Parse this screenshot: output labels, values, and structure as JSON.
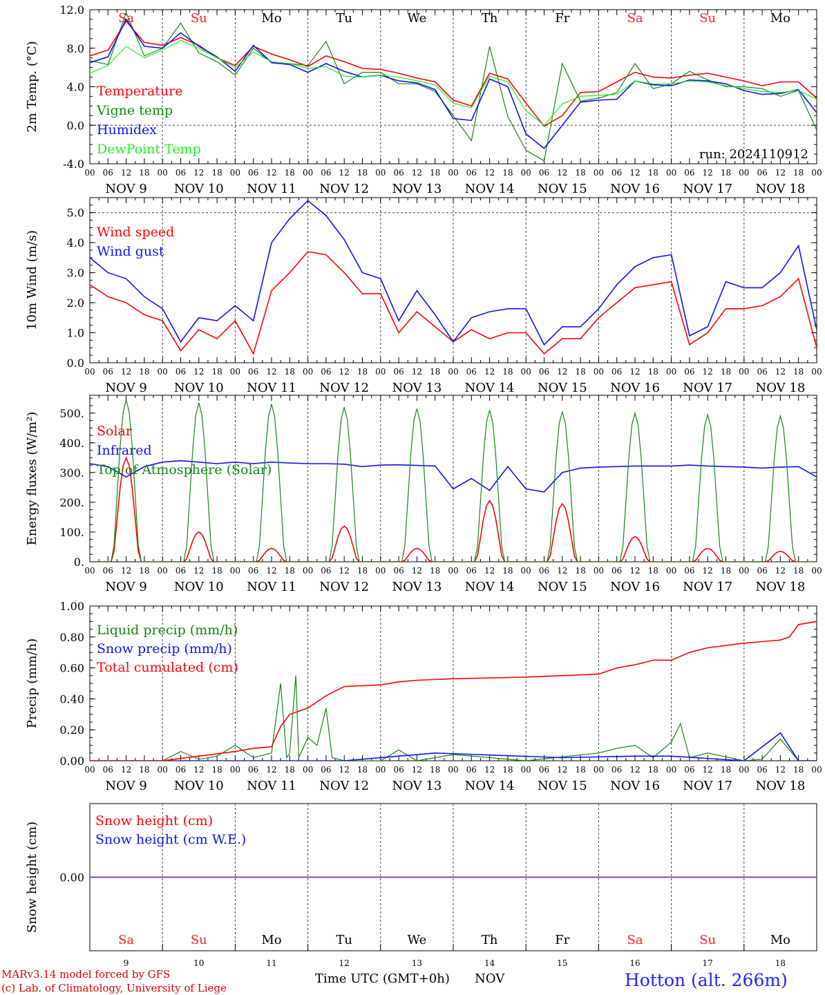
{
  "station": "Hotton (alt. 266m)",
  "credit_line1": "MARv3.14 model forced by GFS",
  "credit_line2": "(c) Lab. of Climatology, University of Liege",
  "xaxis_title": "Time UTC (GMT+0h)",
  "xaxis_month": "NOV",
  "run_label": "run: 2024110912",
  "colors": {
    "red": "#ff0000",
    "green": "#118811",
    "blue": "#1111ee",
    "lightgreen": "#22ee22",
    "purple": "#7a2a9a",
    "weekend": "#ff2020",
    "axis": "#000000"
  },
  "days": [
    {
      "num": "9",
      "name": "Sa",
      "label": "NOV  9",
      "weekend": true
    },
    {
      "num": "10",
      "name": "Su",
      "label": "NOV 10",
      "weekend": true
    },
    {
      "num": "11",
      "name": "Mo",
      "label": "NOV 11",
      "weekend": false
    },
    {
      "num": "12",
      "name": "Tu",
      "label": "NOV 12",
      "weekend": false
    },
    {
      "num": "13",
      "name": "We",
      "label": "NOV 13",
      "weekend": false
    },
    {
      "num": "14",
      "name": "Th",
      "label": "NOV 14",
      "weekend": false
    },
    {
      "num": "15",
      "name": "Fr",
      "label": "NOV 15",
      "weekend": false
    },
    {
      "num": "16",
      "name": "Sa",
      "label": "NOV 16",
      "weekend": true
    },
    {
      "num": "17",
      "name": "Su",
      "label": "NOV 17",
      "weekend": true
    },
    {
      "num": "18",
      "name": "Mo",
      "label": "NOV 18",
      "weekend": false
    }
  ],
  "hour_ticks": [
    "00",
    "06",
    "12",
    "18"
  ],
  "chart_data": [
    {
      "type": "line",
      "ylabel": "2m Temp. (°C)",
      "ylim": [
        -4,
        12
      ],
      "yticks": [
        "12.0",
        "8.0",
        "4.0",
        "0.0",
        "-4.0"
      ],
      "ytick_values": [
        12,
        8,
        4,
        0,
        -4
      ],
      "dashed": [
        0
      ],
      "x_unit": "hours from NOV 9 00 UTC",
      "series": [
        {
          "name": "Temperature",
          "color": "red",
          "x": [
            0,
            6,
            12,
            18,
            24,
            30,
            36,
            42,
            48,
            54,
            60,
            66,
            72,
            78,
            84,
            90,
            96,
            102,
            108,
            114,
            120,
            126,
            132,
            138,
            144,
            150,
            156,
            162,
            168,
            174,
            180,
            186,
            192,
            198,
            204,
            210,
            216,
            222,
            228,
            234,
            240
          ],
          "y": [
            7.2,
            7.8,
            10.8,
            8.6,
            8.3,
            9.1,
            8.3,
            7.0,
            6.2,
            8.2,
            7.4,
            6.8,
            6.1,
            7.2,
            6.6,
            5.9,
            5.8,
            5.4,
            4.9,
            4.5,
            2.6,
            2.0,
            5.4,
            4.8,
            2.3,
            -0.1,
            1.0,
            3.4,
            3.5,
            4.5,
            5.5,
            5.0,
            4.9,
            5.2,
            5.4,
            5.0,
            4.6,
            4.1,
            4.5,
            4.5,
            2.8
          ]
        },
        {
          "name": "Vigne temp",
          "color": "green",
          "x": [
            0,
            6,
            12,
            18,
            24,
            30,
            36,
            42,
            48,
            54,
            60,
            66,
            72,
            78,
            84,
            90,
            96,
            102,
            108,
            114,
            120,
            126,
            132,
            138,
            144,
            150,
            156,
            162,
            168,
            174,
            180,
            186,
            192,
            198,
            204,
            210,
            216,
            222,
            228,
            234,
            240
          ],
          "y": [
            6.7,
            6.3,
            11.7,
            7.2,
            8.0,
            10.6,
            7.5,
            6.6,
            5.2,
            8.0,
            6.5,
            6.4,
            6.2,
            8.7,
            4.3,
            5.5,
            5.5,
            4.3,
            4.3,
            3.5,
            1.0,
            -1.6,
            8.2,
            0.9,
            -2.6,
            -3.7,
            6.4,
            2.5,
            2.8,
            3.4,
            6.4,
            3.8,
            4.3,
            5.6,
            4.7,
            4.0,
            4.0,
            3.8,
            3.0,
            3.6,
            -0.5
          ]
        },
        {
          "name": "Humidex",
          "color": "blue",
          "x": [
            0,
            6,
            12,
            18,
            24,
            30,
            36,
            42,
            48,
            54,
            60,
            66,
            72,
            78,
            84,
            90,
            96,
            102,
            108,
            114,
            120,
            126,
            132,
            138,
            144,
            150,
            156,
            162,
            168,
            174,
            180,
            186,
            192,
            198,
            204,
            210,
            216,
            222,
            228,
            234,
            240
          ],
          "y": [
            6.5,
            7.1,
            11.0,
            8.2,
            8.0,
            9.6,
            8.2,
            7.1,
            5.6,
            8.3,
            6.5,
            6.3,
            5.5,
            6.4,
            5.6,
            5.0,
            5.2,
            4.6,
            4.4,
            3.7,
            0.7,
            0.5,
            4.8,
            4.0,
            -0.9,
            -2.4,
            0.0,
            2.4,
            2.6,
            2.7,
            4.6,
            4.2,
            4.1,
            4.7,
            4.6,
            4.3,
            3.6,
            3.2,
            3.3,
            3.7,
            1.3
          ]
        },
        {
          "name": "DewPoint Temp",
          "color": "lightgreen",
          "x": [
            0,
            6,
            12,
            18,
            24,
            30,
            36,
            42,
            48,
            54,
            60,
            66,
            72,
            78,
            84,
            90,
            96,
            102,
            108,
            114,
            120,
            126,
            132,
            138,
            144,
            150,
            156,
            162,
            168,
            174,
            180,
            186,
            192,
            198,
            204,
            210,
            216,
            222,
            228,
            234,
            240
          ],
          "y": [
            5.4,
            6.2,
            8.2,
            7.0,
            7.8,
            8.8,
            8.0,
            7.0,
            6.0,
            7.6,
            6.6,
            6.4,
            5.9,
            6.1,
            5.1,
            5.0,
            5.2,
            5.0,
            4.6,
            4.2,
            2.3,
            1.8,
            5.1,
            4.5,
            1.5,
            0.0,
            2.2,
            3.0,
            3.1,
            3.2,
            4.6,
            4.3,
            4.3,
            4.6,
            4.5,
            4.1,
            3.8,
            3.5,
            3.4,
            3.6,
            2.7
          ]
        }
      ]
    },
    {
      "type": "line",
      "ylabel": "10m Wind (m/s)",
      "ylim": [
        0,
        5.5
      ],
      "yticks": [
        "5.0",
        "4.0",
        "3.0",
        "2.0",
        "1.0",
        "0.0"
      ],
      "ytick_values": [
        5,
        4,
        3,
        2,
        1,
        0
      ],
      "dashed": [
        5
      ],
      "x_unit": "hours from NOV 9 00 UTC",
      "series": [
        {
          "name": "Wind speed",
          "color": "red",
          "x": [
            0,
            6,
            12,
            18,
            24,
            30,
            36,
            42,
            48,
            54,
            60,
            66,
            72,
            78,
            84,
            90,
            96,
            102,
            108,
            114,
            120,
            126,
            132,
            138,
            144,
            150,
            156,
            162,
            168,
            174,
            180,
            186,
            192,
            198,
            204,
            210,
            216,
            222,
            228,
            234,
            240
          ],
          "y": [
            2.6,
            2.2,
            2.0,
            1.6,
            1.4,
            0.4,
            1.1,
            0.8,
            1.4,
            0.3,
            2.4,
            3.0,
            3.7,
            3.6,
            3.0,
            2.3,
            2.3,
            1.0,
            1.7,
            1.2,
            0.7,
            1.1,
            0.8,
            1.0,
            1.0,
            0.3,
            0.8,
            0.8,
            1.5,
            2.0,
            2.5,
            2.6,
            2.7,
            0.6,
            1.0,
            1.8,
            1.8,
            1.9,
            2.2,
            2.8,
            0.5
          ]
        },
        {
          "name": "Wind gust",
          "color": "blue",
          "x": [
            0,
            6,
            12,
            18,
            24,
            30,
            36,
            42,
            48,
            54,
            60,
            66,
            72,
            78,
            84,
            90,
            96,
            102,
            108,
            114,
            120,
            126,
            132,
            138,
            144,
            150,
            156,
            162,
            168,
            174,
            180,
            186,
            192,
            198,
            204,
            210,
            216,
            222,
            228,
            234,
            240
          ],
          "y": [
            3.5,
            3.0,
            2.8,
            2.2,
            1.8,
            0.7,
            1.5,
            1.4,
            1.9,
            1.4,
            4.0,
            4.8,
            5.4,
            4.9,
            4.1,
            3.0,
            2.8,
            1.4,
            2.4,
            1.6,
            0.7,
            1.5,
            1.7,
            1.8,
            1.8,
            0.6,
            1.2,
            1.2,
            1.8,
            2.6,
            3.2,
            3.5,
            3.6,
            0.9,
            1.2,
            2.7,
            2.5,
            2.5,
            3.0,
            3.9,
            1.1
          ]
        }
      ]
    },
    {
      "type": "line",
      "ylabel": "Energy fluxes (W/m²)",
      "ylim": [
        0,
        560
      ],
      "yticks": [
        "500.",
        "400.",
        "300.",
        "200.",
        "100.",
        "0."
      ],
      "ytick_values": [
        500,
        400,
        300,
        200,
        100,
        0
      ],
      "dashed": [],
      "x_unit": "hours from NOV 9 00 UTC",
      "series": [
        {
          "name": "Solar",
          "color": "red",
          "peaks": [
            350,
            100,
            45,
            120,
            45,
            205,
            195,
            85,
            45,
            35
          ]
        },
        {
          "name": "Infrared",
          "color": "blue",
          "x": [
            0,
            6,
            12,
            18,
            24,
            30,
            36,
            42,
            48,
            54,
            60,
            66,
            72,
            78,
            84,
            90,
            96,
            102,
            108,
            114,
            120,
            126,
            132,
            138,
            144,
            150,
            156,
            162,
            168,
            174,
            180,
            186,
            192,
            198,
            204,
            210,
            216,
            222,
            228,
            234,
            240
          ],
          "y": [
            330,
            320,
            285,
            320,
            335,
            340,
            335,
            330,
            335,
            330,
            335,
            332,
            330,
            330,
            328,
            320,
            325,
            326,
            324,
            322,
            245,
            280,
            240,
            320,
            245,
            235,
            300,
            315,
            318,
            320,
            322,
            322,
            322,
            325,
            322,
            320,
            318,
            315,
            318,
            320,
            285
          ]
        },
        {
          "name": "Top of Atmosphere (Solar)",
          "color": "green",
          "peaks": [
            545,
            535,
            530,
            520,
            515,
            510,
            505,
            500,
            495,
            490
          ]
        }
      ]
    },
    {
      "type": "line",
      "ylabel": "Precip (mm/h)",
      "ylim": [
        0,
        1.0
      ],
      "yticks": [
        "1.00",
        "0.80",
        "0.60",
        "0.40",
        "0.20",
        "0.00"
      ],
      "ytick_values": [
        1,
        0.8,
        0.6,
        0.4,
        0.2,
        0
      ],
      "dashed": [],
      "x_unit": "hours from NOV 9 00 UTC",
      "series": [
        {
          "name": "Liquid precip (mm/h)",
          "color": "green",
          "x": [
            0,
            24,
            30,
            36,
            42,
            48,
            54,
            60,
            63,
            65,
            66,
            68,
            69,
            72,
            75,
            78,
            80,
            84,
            96,
            102,
            108,
            120,
            144,
            168,
            174,
            180,
            186,
            192,
            195,
            198,
            204,
            216,
            222,
            228,
            234,
            240
          ],
          "y": [
            0,
            0,
            0.06,
            0.01,
            0.03,
            0.1,
            0.02,
            0.05,
            0.5,
            0.02,
            0.05,
            0.55,
            0.02,
            0.15,
            0.1,
            0.34,
            0.02,
            0,
            0,
            0.07,
            0,
            0.04,
            0,
            0.05,
            0.08,
            0.1,
            0.02,
            0.12,
            0.24,
            0.02,
            0.05,
            0,
            0.01,
            0.14,
            0,
            0
          ]
        },
        {
          "name": "Snow precip (mm/h)",
          "color": "blue",
          "x": [
            0,
            84,
            114,
            156,
            180,
            192,
            216,
            228,
            234,
            240
          ],
          "y": [
            0,
            0,
            0.05,
            0.02,
            0.03,
            0.03,
            0,
            0.18,
            0,
            0
          ]
        },
        {
          "name": "Total cumulated (cm)",
          "color": "red",
          "x": [
            0,
            24,
            36,
            48,
            54,
            60,
            63,
            66,
            72,
            78,
            84,
            96,
            102,
            108,
            120,
            144,
            156,
            168,
            174,
            180,
            186,
            192,
            198,
            204,
            216,
            222,
            228,
            231,
            234,
            240
          ],
          "y": [
            0,
            0,
            0.03,
            0.06,
            0.08,
            0.09,
            0.22,
            0.3,
            0.34,
            0.42,
            0.48,
            0.49,
            0.51,
            0.52,
            0.53,
            0.54,
            0.55,
            0.56,
            0.6,
            0.62,
            0.65,
            0.65,
            0.7,
            0.73,
            0.76,
            0.77,
            0.78,
            0.8,
            0.88,
            0.9
          ]
        }
      ]
    },
    {
      "type": "line",
      "ylabel": "Snow height (cm)",
      "ylim": [
        -1,
        1
      ],
      "yticks": [
        "0.00"
      ],
      "ytick_values": [
        0
      ],
      "dashed": [],
      "x_unit": "hours from NOV 9 00 UTC",
      "series": [
        {
          "name": "Snow height (cm)",
          "color": "red",
          "x": [
            0,
            240
          ],
          "y": [
            0,
            0
          ]
        },
        {
          "name": "Snow height (cm W.E.)",
          "color": "blue",
          "x": [
            0,
            240
          ],
          "y": [
            0,
            0
          ]
        }
      ]
    }
  ]
}
